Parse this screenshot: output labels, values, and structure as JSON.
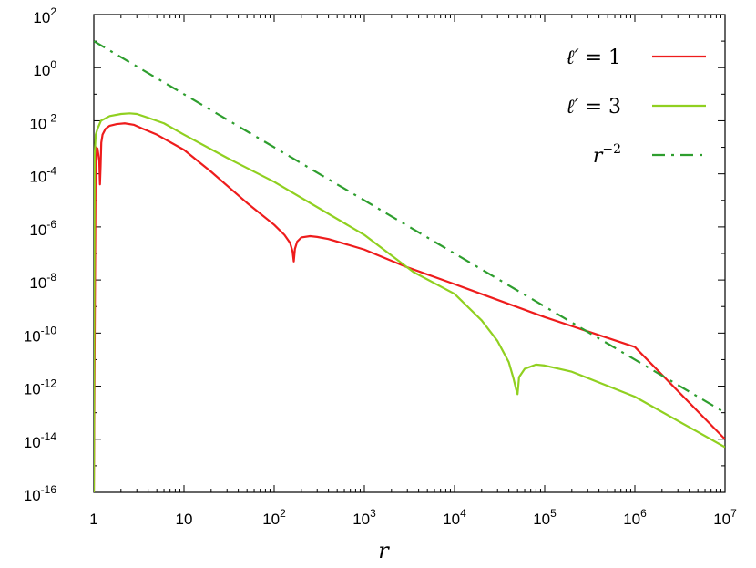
{
  "chart_data": {
    "type": "line",
    "xlabel": "r",
    "ylabel": "",
    "x_scale": "log",
    "y_scale": "log",
    "xlim": [
      1,
      10000000
    ],
    "ylim": [
      1e-16,
      100
    ],
    "x_ticks": [
      {
        "value": 1,
        "base": "1",
        "exp": ""
      },
      {
        "value": 10,
        "base": "10",
        "exp": ""
      },
      {
        "value": 100,
        "base": "10",
        "exp": "2"
      },
      {
        "value": 1000,
        "base": "10",
        "exp": "3"
      },
      {
        "value": 10000,
        "base": "10",
        "exp": "4"
      },
      {
        "value": 100000,
        "base": "10",
        "exp": "5"
      },
      {
        "value": 1000000,
        "base": "10",
        "exp": "6"
      },
      {
        "value": 10000000,
        "base": "10",
        "exp": "7"
      }
    ],
    "y_ticks": [
      {
        "value": 100,
        "base": "10",
        "exp": "2"
      },
      {
        "value": 1,
        "base": "10",
        "exp": "0"
      },
      {
        "value": 0.01,
        "base": "10",
        "exp": "-2"
      },
      {
        "value": 0.0001,
        "base": "10",
        "exp": "-4"
      },
      {
        "value": 1e-06,
        "base": "10",
        "exp": "-6"
      },
      {
        "value": 1e-08,
        "base": "10",
        "exp": "-8"
      },
      {
        "value": 1e-10,
        "base": "10",
        "exp": "-10"
      },
      {
        "value": 1e-12,
        "base": "10",
        "exp": "-12"
      },
      {
        "value": 1e-14,
        "base": "10",
        "exp": "-14"
      },
      {
        "value": 1e-16,
        "base": "10",
        "exp": "-16"
      }
    ],
    "legend_position": "top-right",
    "grid": false,
    "series": [
      {
        "name": "ℓ′ = 1",
        "legend_parts": [
          {
            "text": "ℓ′",
            "italic": true
          },
          {
            "text": " = 1",
            "italic": false
          }
        ],
        "color": "#ee1c1c",
        "dash": "solid",
        "x": [
          1.0,
          1.05,
          1.1,
          1.15,
          1.17,
          1.19,
          1.21,
          1.25,
          1.35,
          1.5,
          1.8,
          2.2,
          2.8,
          3.5,
          5,
          10,
          20,
          50,
          100,
          130,
          150,
          160,
          165,
          170,
          180,
          200,
          250,
          300,
          400,
          1000,
          3000,
          10000,
          100000,
          1000000,
          10000000
        ],
        "y": [
          1e-16,
          0.001,
          0.0009,
          0.0003,
          4e-05,
          0.0002,
          0.0015,
          0.003,
          0.005,
          0.0065,
          0.0075,
          0.008,
          0.007,
          0.005,
          0.003,
          0.0008,
          0.00012,
          8e-06,
          1.2e-06,
          5e-07,
          2.5e-07,
          1.2e-07,
          5e-08,
          1.5e-07,
          2.8e-07,
          4e-07,
          4.5e-07,
          4.2e-07,
          3.5e-07,
          1.4e-07,
          3e-08,
          7e-09,
          4e-10,
          3e-11,
          1e-14
        ]
      },
      {
        "name": "ℓ′ = 3",
        "legend_parts": [
          {
            "text": "ℓ′",
            "italic": true
          },
          {
            "text": " = 3",
            "italic": false
          }
        ],
        "color": "#90d020",
        "dash": "solid",
        "x": [
          1.0,
          1.02,
          1.05,
          1.1,
          1.2,
          1.5,
          2,
          2.5,
          3,
          4,
          6,
          10,
          30,
          100,
          1000,
          3500,
          10000,
          20000,
          30000,
          40000,
          45000,
          48000,
          50000,
          52000,
          60000,
          80000,
          100000,
          200000,
          1000000,
          10000000
        ],
        "y": [
          1e-16,
          0.0005,
          0.003,
          0.005,
          0.01,
          0.015,
          0.018,
          0.019,
          0.018,
          0.013,
          0.008,
          0.003,
          0.0004,
          5e-05,
          5e-07,
          2e-08,
          3e-09,
          3e-10,
          5e-11,
          8e-12,
          2e-12,
          8e-13,
          5e-13,
          2.2e-12,
          4.5e-12,
          6.5e-12,
          6e-12,
          3.5e-12,
          4e-13,
          5e-15
        ]
      },
      {
        "name": "r⁻²",
        "legend_parts": [
          {
            "text": "r",
            "italic": true
          },
          {
            "text": "−2",
            "italic": false,
            "sup": true
          }
        ],
        "color": "#2e9e2e",
        "dash": "dashdot",
        "x": [
          1,
          10000000
        ],
        "y": [
          10,
          1e-13
        ]
      }
    ]
  }
}
